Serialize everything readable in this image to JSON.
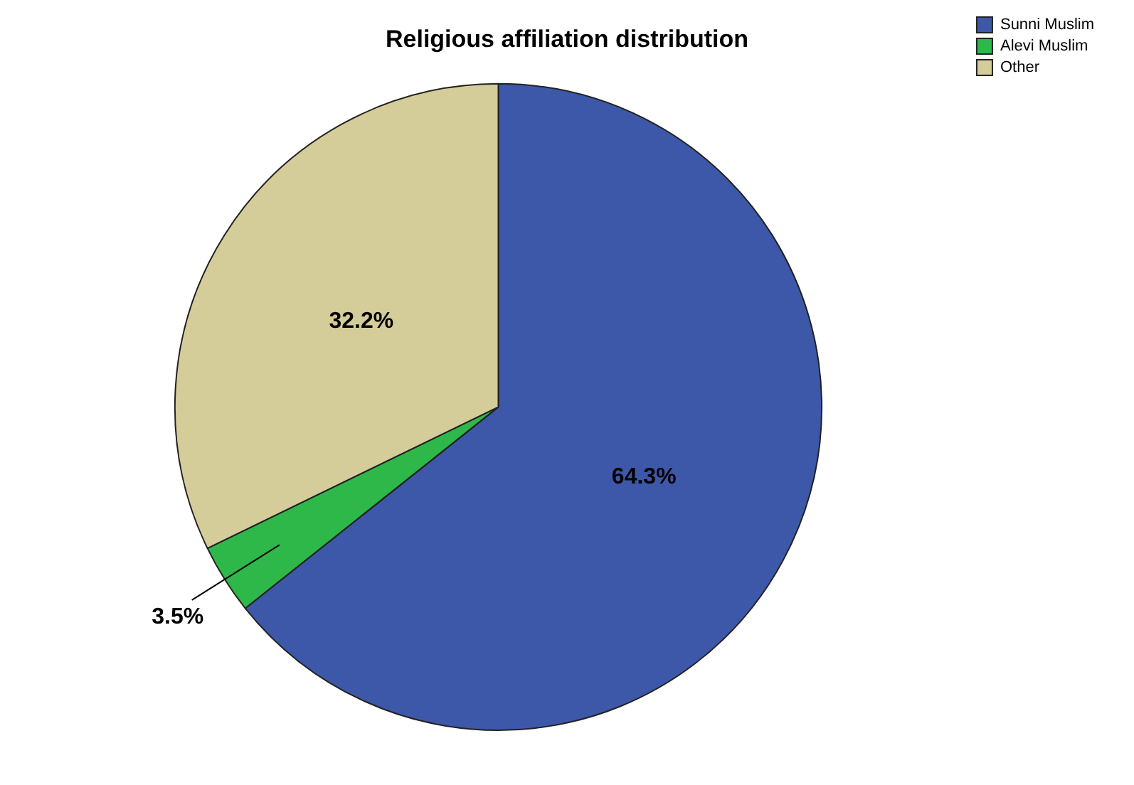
{
  "chart_data": {
    "type": "pie",
    "title": "Religious affiliation distribution",
    "categories": [
      "Sunni Muslim",
      "Alevi Muslim",
      "Other"
    ],
    "values": [
      64.3,
      3.5,
      32.2
    ],
    "colors": [
      "#3d58a8",
      "#2eb84a",
      "#d4cd9a"
    ],
    "value_labels": [
      "64.3%",
      "3.5%",
      "32.2%"
    ],
    "legend": "top right"
  }
}
